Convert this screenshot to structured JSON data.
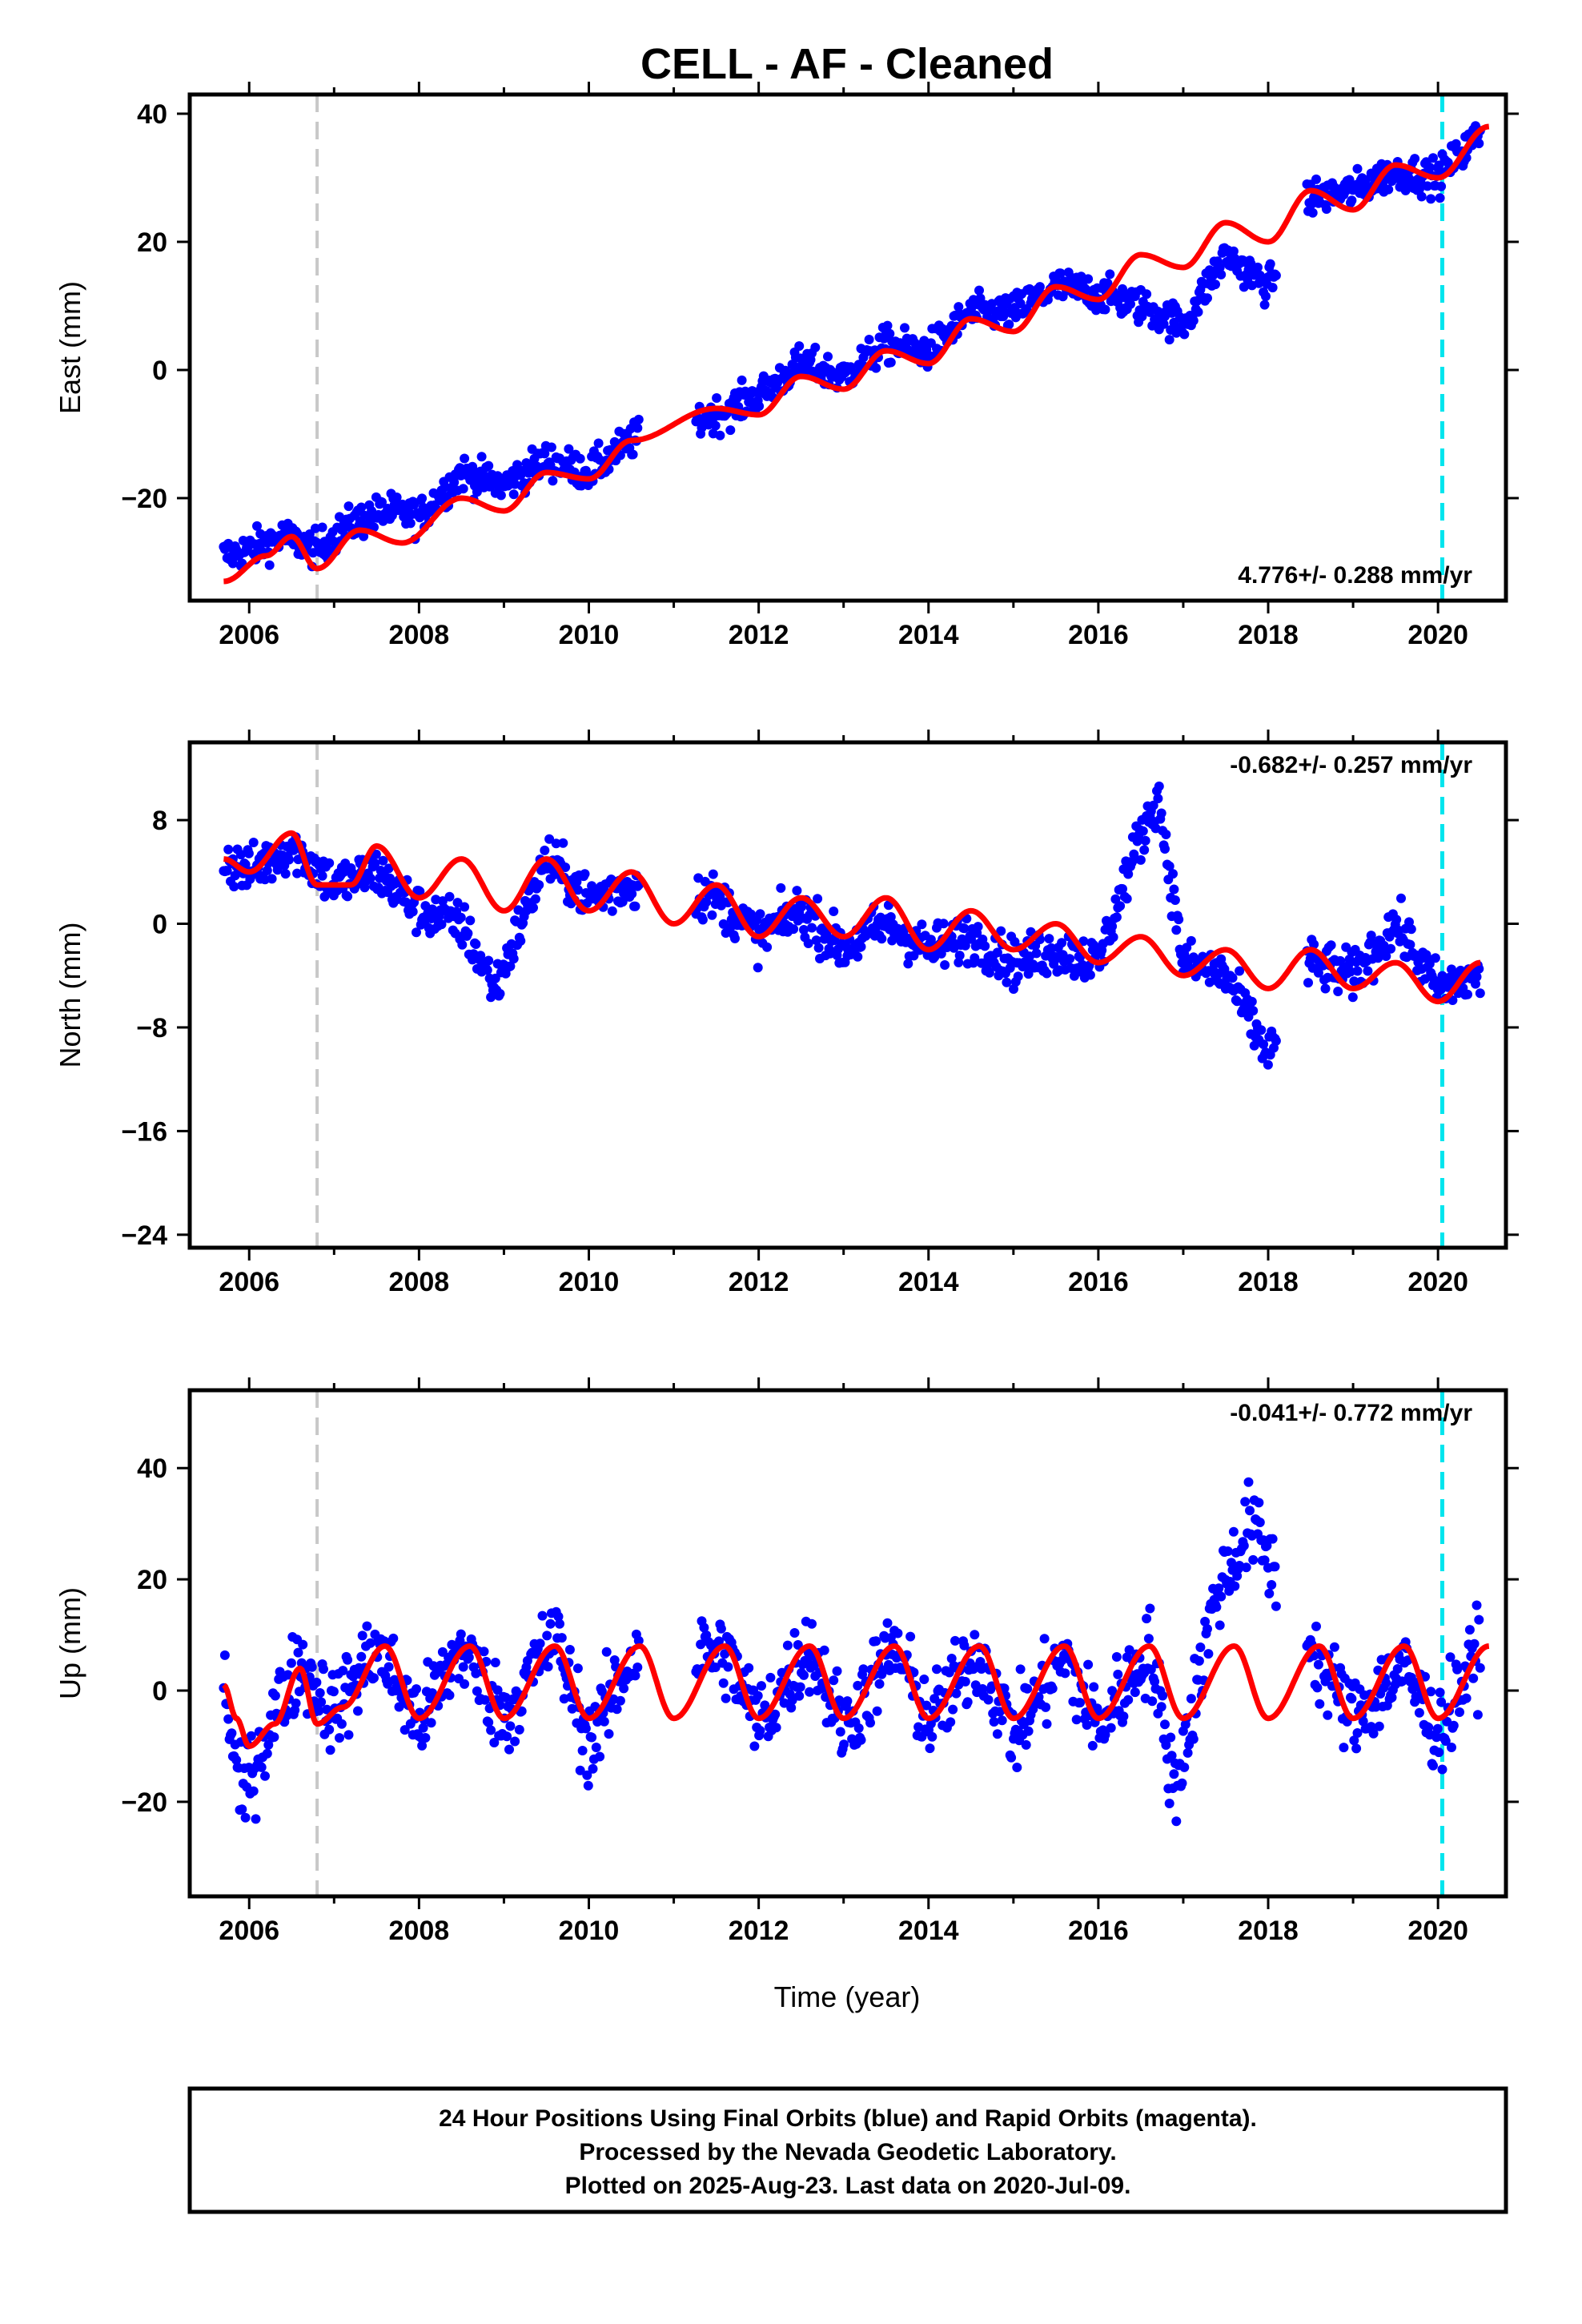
{
  "title": "CELL  - AF - Cleaned",
  "xlabel": "Time (year)",
  "footer": {
    "line1": "24 Hour Positions Using Final Orbits (blue) and Rapid Orbits (magenta).",
    "line2": "Processed by the Nevada Geodetic Laboratory.",
    "line3": "Plotted on 2025-Aug-23. Last data on 2020-Jul-09."
  },
  "colors": {
    "points": "#0000ff",
    "model": "#ff0000",
    "equipment_change": "#c8c8c8",
    "last_line": "#00e5ee"
  },
  "chart_data": [
    {
      "type": "scatter",
      "ylabel": "East (mm)",
      "rate": "4.776+/- 0.288 mm/yr",
      "xlim": [
        2005.3,
        2020.8
      ],
      "ylim": [
        -36,
        43
      ],
      "xticks": [
        "2006",
        "2008",
        "2010",
        "2012",
        "2014",
        "2016",
        "2018",
        "2020"
      ],
      "yticks": [
        "−20",
        "0",
        "20",
        "40"
      ],
      "ytick_values": [
        -20,
        0,
        20,
        40
      ],
      "vlines": [
        2006.8,
        2020.05
      ],
      "series": [
        {
          "role": "daily-positions",
          "x": [
            2005.7,
            2006.0,
            2006.4,
            2006.8,
            2007.2,
            2007.6,
            2008.0,
            2008.5,
            2009.0,
            2009.5,
            2010.0,
            2010.5,
            2011.5,
            2012.0,
            2012.5,
            2013.0,
            2013.5,
            2014.0,
            2014.5,
            2015.0,
            2015.5,
            2016.0,
            2016.5,
            2017.0,
            2017.5,
            2018.0,
            2018.5,
            2019.0,
            2019.5,
            2020.0,
            2020.5
          ],
          "y": [
            -29,
            -28,
            -26,
            -28,
            -24,
            -22,
            -23,
            -16,
            -18,
            -14,
            -16,
            -11,
            -7,
            -4,
            1,
            -1,
            4,
            3,
            9,
            9,
            13,
            12,
            10,
            7,
            18,
            13,
            27,
            28,
            31,
            30,
            37
          ]
        },
        {
          "role": "model",
          "x": [
            2005.7,
            2006.2,
            2006.5,
            2006.8,
            2007.3,
            2007.8,
            2008.5,
            2009.0,
            2009.5,
            2010.0,
            2010.5,
            2011.5,
            2012.0,
            2012.5,
            2013.0,
            2013.5,
            2014.0,
            2014.5,
            2015.0,
            2015.5,
            2016.0,
            2016.5,
            2017.0,
            2017.5,
            2018.0,
            2018.5,
            2019.0,
            2019.5,
            2020.0,
            2020.6
          ],
          "y": [
            -33,
            -29,
            -26,
            -31,
            -25,
            -27,
            -20,
            -22,
            -16,
            -17,
            -11,
            -6,
            -7,
            -1,
            -3,
            3,
            1,
            8,
            6,
            13,
            11,
            18,
            16,
            23,
            20,
            28,
            25,
            32,
            30,
            38
          ]
        }
      ]
    },
    {
      "type": "scatter",
      "ylabel": "North (mm)",
      "rate": "-0.682+/- 0.257 mm/yr",
      "xlim": [
        2005.3,
        2020.8
      ],
      "ylim": [
        -25,
        14
      ],
      "xticks": [
        "2006",
        "2008",
        "2010",
        "2012",
        "2014",
        "2016",
        "2018",
        "2020"
      ],
      "yticks": [
        "−24",
        "−16",
        "−8",
        "0",
        "8"
      ],
      "ytick_values": [
        -24,
        -16,
        -8,
        0,
        8
      ],
      "vlines": [
        2006.8,
        2020.05
      ],
      "series": [
        {
          "role": "daily-positions",
          "x": [
            2005.7,
            2006.0,
            2006.5,
            2007.0,
            2007.5,
            2008.0,
            2008.5,
            2008.9,
            2009.5,
            2010.0,
            2010.5,
            2011.5,
            2012.0,
            2012.5,
            2013.0,
            2013.5,
            2014.0,
            2014.5,
            2015.0,
            2015.5,
            2016.0,
            2016.4,
            2016.7,
            2017.0,
            2017.5,
            2018.0,
            2018.5,
            2019.0,
            2019.5,
            2020.0,
            2020.5
          ],
          "y": [
            5,
            4,
            6,
            3,
            4,
            1,
            0,
            -5,
            5,
            2,
            3,
            2,
            -1,
            1,
            -2,
            0,
            -2,
            -1,
            -3,
            -2,
            -3,
            5,
            10,
            -3,
            -4,
            -10,
            -3,
            -4,
            0,
            -5,
            -4
          ]
        },
        {
          "role": "model",
          "x": [
            2005.7,
            2006.0,
            2006.5,
            2006.8,
            2007.2,
            2007.5,
            2008.0,
            2008.5,
            2009.0,
            2009.5,
            2010.0,
            2010.5,
            2011.0,
            2011.5,
            2012.0,
            2012.5,
            2013.0,
            2013.5,
            2014.0,
            2014.5,
            2015.0,
            2015.5,
            2016.0,
            2016.5,
            2017.0,
            2017.5,
            2018.0,
            2018.5,
            2019.0,
            2019.5,
            2020.0,
            2020.5
          ],
          "y": [
            5,
            4,
            7,
            3,
            3,
            6,
            2,
            5,
            1,
            5,
            1,
            4,
            0,
            3,
            -1,
            2,
            -1,
            2,
            -2,
            1,
            -2,
            0,
            -3,
            -1,
            -4,
            -2,
            -5,
            -2,
            -5,
            -3,
            -6,
            -3
          ]
        }
      ]
    },
    {
      "type": "scatter",
      "ylabel": "Up (mm)",
      "rate": "-0.041+/- 0.772 mm/yr",
      "xlim": [
        2005.3,
        2020.8
      ],
      "ylim": [
        -37,
        54
      ],
      "xticks": [
        "2006",
        "2008",
        "2010",
        "2012",
        "2014",
        "2016",
        "2018",
        "2020"
      ],
      "yticks": [
        "−20",
        "0",
        "20",
        "40"
      ],
      "ytick_values": [
        -20,
        0,
        20,
        40
      ],
      "vlines": [
        2006.8,
        2020.05
      ],
      "series": [
        {
          "role": "daily-positions",
          "x": [
            2005.7,
            2005.9,
            2006.2,
            2006.6,
            2007.0,
            2007.5,
            2008.0,
            2008.5,
            2009.0,
            2009.6,
            2010.0,
            2010.5,
            2011.6,
            2012.0,
            2012.6,
            2013.0,
            2013.6,
            2014.0,
            2014.6,
            2015.0,
            2015.6,
            2016.0,
            2016.6,
            2016.9,
            2017.4,
            2017.8,
            2018.6,
            2019.0,
            2019.6,
            2020.0,
            2020.5
          ],
          "y": [
            2,
            -20,
            -8,
            5,
            -4,
            8,
            -6,
            8,
            -5,
            10,
            -10,
            6,
            7,
            -6,
            8,
            -7,
            8,
            -6,
            7,
            -8,
            6,
            -7,
            8,
            -18,
            18,
            30,
            5,
            -5,
            4,
            -8,
            8
          ]
        },
        {
          "role": "model",
          "x": [
            2005.7,
            2005.85,
            2006.0,
            2006.3,
            2006.6,
            2006.8,
            2007.1,
            2007.6,
            2008.0,
            2008.6,
            2009.0,
            2009.6,
            2010.0,
            2010.6,
            2011.0,
            2011.6,
            2012.0,
            2012.6,
            2013.0,
            2013.6,
            2014.0,
            2014.6,
            2015.0,
            2015.6,
            2016.0,
            2016.6,
            2017.0,
            2017.6,
            2018.0,
            2018.6,
            2019.0,
            2019.6,
            2020.0,
            2020.6
          ],
          "y": [
            1,
            -5,
            -10,
            -6,
            4,
            -6,
            -3,
            8,
            -5,
            8,
            -5,
            8,
            -5,
            8,
            -5,
            8,
            -5,
            8,
            -5,
            8,
            -5,
            8,
            -5,
            8,
            -5,
            8,
            -5,
            8,
            -5,
            8,
            -5,
            8,
            -5,
            8
          ]
        }
      ]
    }
  ]
}
